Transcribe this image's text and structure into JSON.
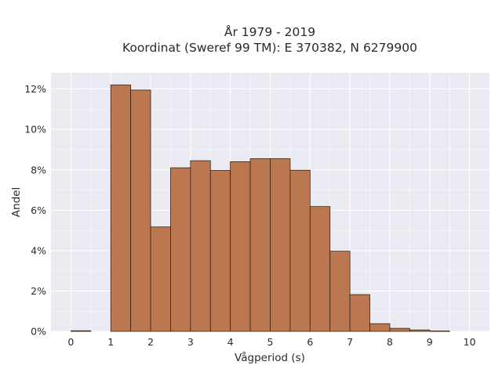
{
  "chart_data": {
    "type": "bar",
    "title_lines": [
      "År 1979 - 2019",
      "Koordinat (Sweref 99 TM): E 370382, N 6279900"
    ],
    "xlabel": "Vågperiod (s)",
    "ylabel": "Andel",
    "xlim": [
      -0.5,
      10.5
    ],
    "ylim": [
      0,
      12.8
    ],
    "bin_width": 0.5,
    "x_ticks": [
      "0",
      "1",
      "2",
      "3",
      "4",
      "5",
      "6",
      "7",
      "8",
      "9",
      "10"
    ],
    "y_ticks": [
      "0%",
      "2%",
      "4%",
      "6%",
      "8%",
      "10%",
      "12%"
    ],
    "y_tick_values": [
      0,
      2,
      4,
      6,
      8,
      10,
      12
    ],
    "grid": true,
    "bar_color": "#bb7850",
    "bar_edge_color": "#3a2416",
    "plot_background": "#eaeaf2",
    "bins": [
      {
        "x": 0.0,
        "value": 0.03
      },
      {
        "x": 1.0,
        "value": 12.2
      },
      {
        "x": 1.5,
        "value": 11.95
      },
      {
        "x": 2.0,
        "value": 5.17
      },
      {
        "x": 2.5,
        "value": 8.1
      },
      {
        "x": 3.0,
        "value": 8.45
      },
      {
        "x": 3.5,
        "value": 7.97
      },
      {
        "x": 4.0,
        "value": 8.4
      },
      {
        "x": 4.5,
        "value": 8.55
      },
      {
        "x": 5.0,
        "value": 8.55
      },
      {
        "x": 5.5,
        "value": 7.98
      },
      {
        "x": 6.0,
        "value": 6.18
      },
      {
        "x": 6.5,
        "value": 3.97
      },
      {
        "x": 7.0,
        "value": 1.82
      },
      {
        "x": 7.5,
        "value": 0.38
      },
      {
        "x": 8.0,
        "value": 0.15
      },
      {
        "x": 8.5,
        "value": 0.07
      },
      {
        "x": 9.0,
        "value": 0.02
      }
    ]
  }
}
